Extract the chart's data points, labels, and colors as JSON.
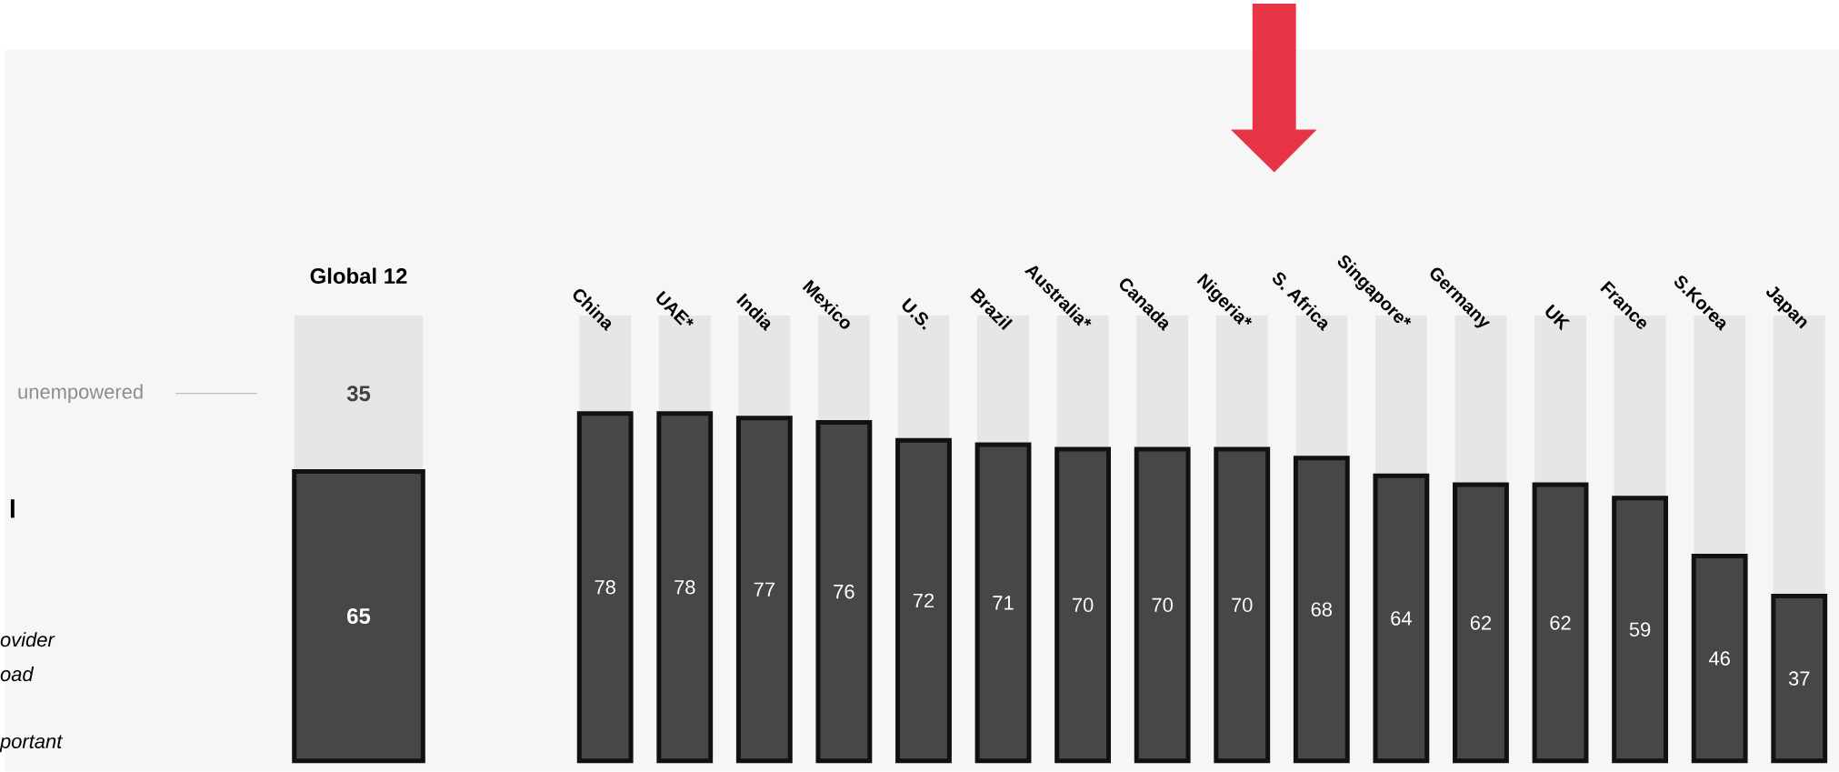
{
  "chart_data": [
    {
      "type": "bar",
      "stacked": true,
      "categories": [
        "Global 12"
      ],
      "ylim": [
        0,
        100
      ],
      "tick_labels": "x",
      "series": [
        {
          "color": "#474747",
          "values": [
            65
          ],
          "value_labels": [
            "65"
          ]
        },
        {
          "name": "unempowered",
          "color": "#e6e6e6",
          "values": [
            35
          ],
          "value_labels": [
            "35"
          ]
        }
      ],
      "annotations": [
        "l",
        "ovider",
        "oad",
        "portant"
      ]
    },
    {
      "type": "bar",
      "stacked": true,
      "categories": [
        "China",
        "UAE*",
        "India",
        "Mexico",
        "U.S.",
        "Brazil",
        "Australia*",
        "Canada",
        "Nigeria*",
        "S. Africa",
        "Singapore*",
        "Germany",
        "UK",
        "France",
        "S.Korea",
        "Japan"
      ],
      "ylim": [
        0,
        100
      ],
      "tick_labels": "x",
      "series": [
        {
          "color": "#474747",
          "values": [
            78,
            78,
            77,
            76,
            72,
            71,
            70,
            70,
            70,
            68,
            64,
            62,
            62,
            59,
            46,
            37
          ],
          "value_labels": [
            "78",
            "78",
            "77",
            "76",
            "72",
            "71",
            "70",
            "70",
            "70",
            "68",
            "64",
            "62",
            "62",
            "59",
            "46",
            "37"
          ]
        },
        {
          "color": "#e6e6e6",
          "values": [
            22,
            22,
            23,
            24,
            28,
            29,
            30,
            30,
            30,
            32,
            36,
            38,
            38,
            41,
            54,
            63
          ]
        }
      ]
    }
  ]
}
